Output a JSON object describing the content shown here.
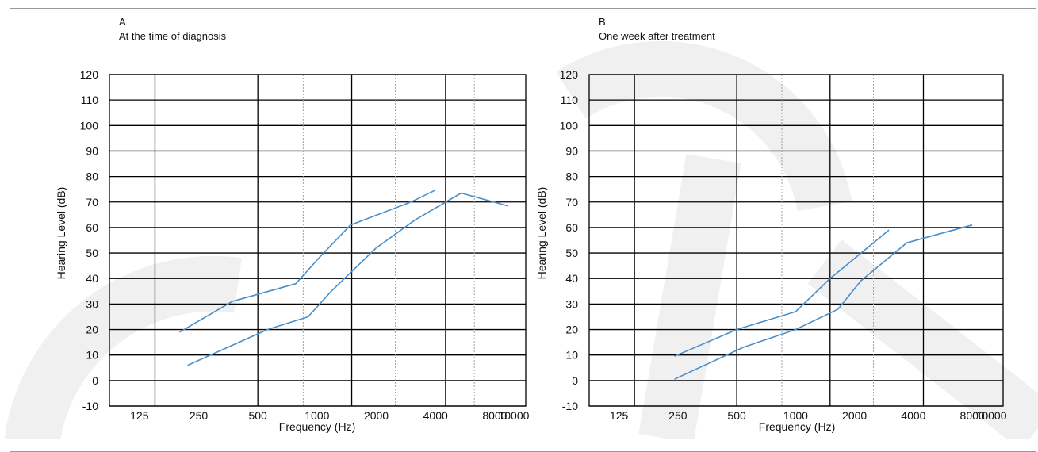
{
  "chart_data": [
    {
      "type": "line",
      "panel_letter": "A",
      "title": "At the time of diagnosis",
      "xlabel": "Frequency (Hz)",
      "ylabel": "Hearing Level (dB)",
      "x_scale": "log",
      "xlim": [
        88,
        11500
      ],
      "ylim": [
        -10,
        120
      ],
      "y_ticks": [
        -10,
        0,
        10,
        20,
        30,
        40,
        50,
        60,
        70,
        80,
        90,
        100,
        110,
        120
      ],
      "x_tick_values": [
        125,
        250,
        500,
        1000,
        2000,
        4000,
        8000,
        10000
      ],
      "x_tick_labels": [
        "125",
        "250",
        "500",
        "1000",
        "2000",
        "4000",
        "8000",
        "10000"
      ],
      "major_grid_x": [
        150,
        500,
        1500,
        4500
      ],
      "minor_grid_x": [
        850,
        2500,
        6300
      ],
      "line_color": "#4a8ec9",
      "grid": true,
      "legend": "none",
      "series": [
        {
          "x": [
            200,
            370,
            780,
            1020,
            1480,
            3000,
            3950
          ],
          "y": [
            19,
            31,
            38,
            48,
            61,
            70,
            74.5
          ]
        },
        {
          "x": [
            220,
            560,
            900,
            1180,
            2000,
            3150,
            5400,
            9300
          ],
          "y": [
            6,
            20,
            25,
            35,
            52,
            63,
            73.5,
            68.5
          ]
        }
      ]
    },
    {
      "type": "line",
      "panel_letter": "B",
      "title": "One week after treatment",
      "xlabel": "Frequency (Hz)",
      "ylabel": "Hearing Level (dB)",
      "x_scale": "log",
      "xlim": [
        88,
        11500
      ],
      "ylim": [
        -10,
        120
      ],
      "y_ticks": [
        -10,
        0,
        10,
        20,
        30,
        40,
        50,
        60,
        70,
        80,
        90,
        100,
        110,
        120
      ],
      "x_tick_values": [
        125,
        250,
        500,
        1000,
        2000,
        4000,
        8000,
        10000
      ],
      "x_tick_labels": [
        "125",
        "250",
        "500",
        "1000",
        "2000",
        "4000",
        "8000",
        "10000"
      ],
      "major_grid_x": [
        150,
        500,
        1500,
        4500
      ],
      "minor_grid_x": [
        850,
        2500,
        6300
      ],
      "line_color": "#4a8ec9",
      "grid": true,
      "legend": "none",
      "series": [
        {
          "x": [
            240,
            500,
            1000,
            1500,
            3000
          ],
          "y": [
            9.5,
            20,
            27,
            40,
            59
          ]
        },
        {
          "x": [
            240,
            540,
            1000,
            1650,
            2150,
            3700,
            8000
          ],
          "y": [
            0.5,
            13,
            20,
            28,
            39,
            54,
            61
          ]
        }
      ]
    }
  ]
}
